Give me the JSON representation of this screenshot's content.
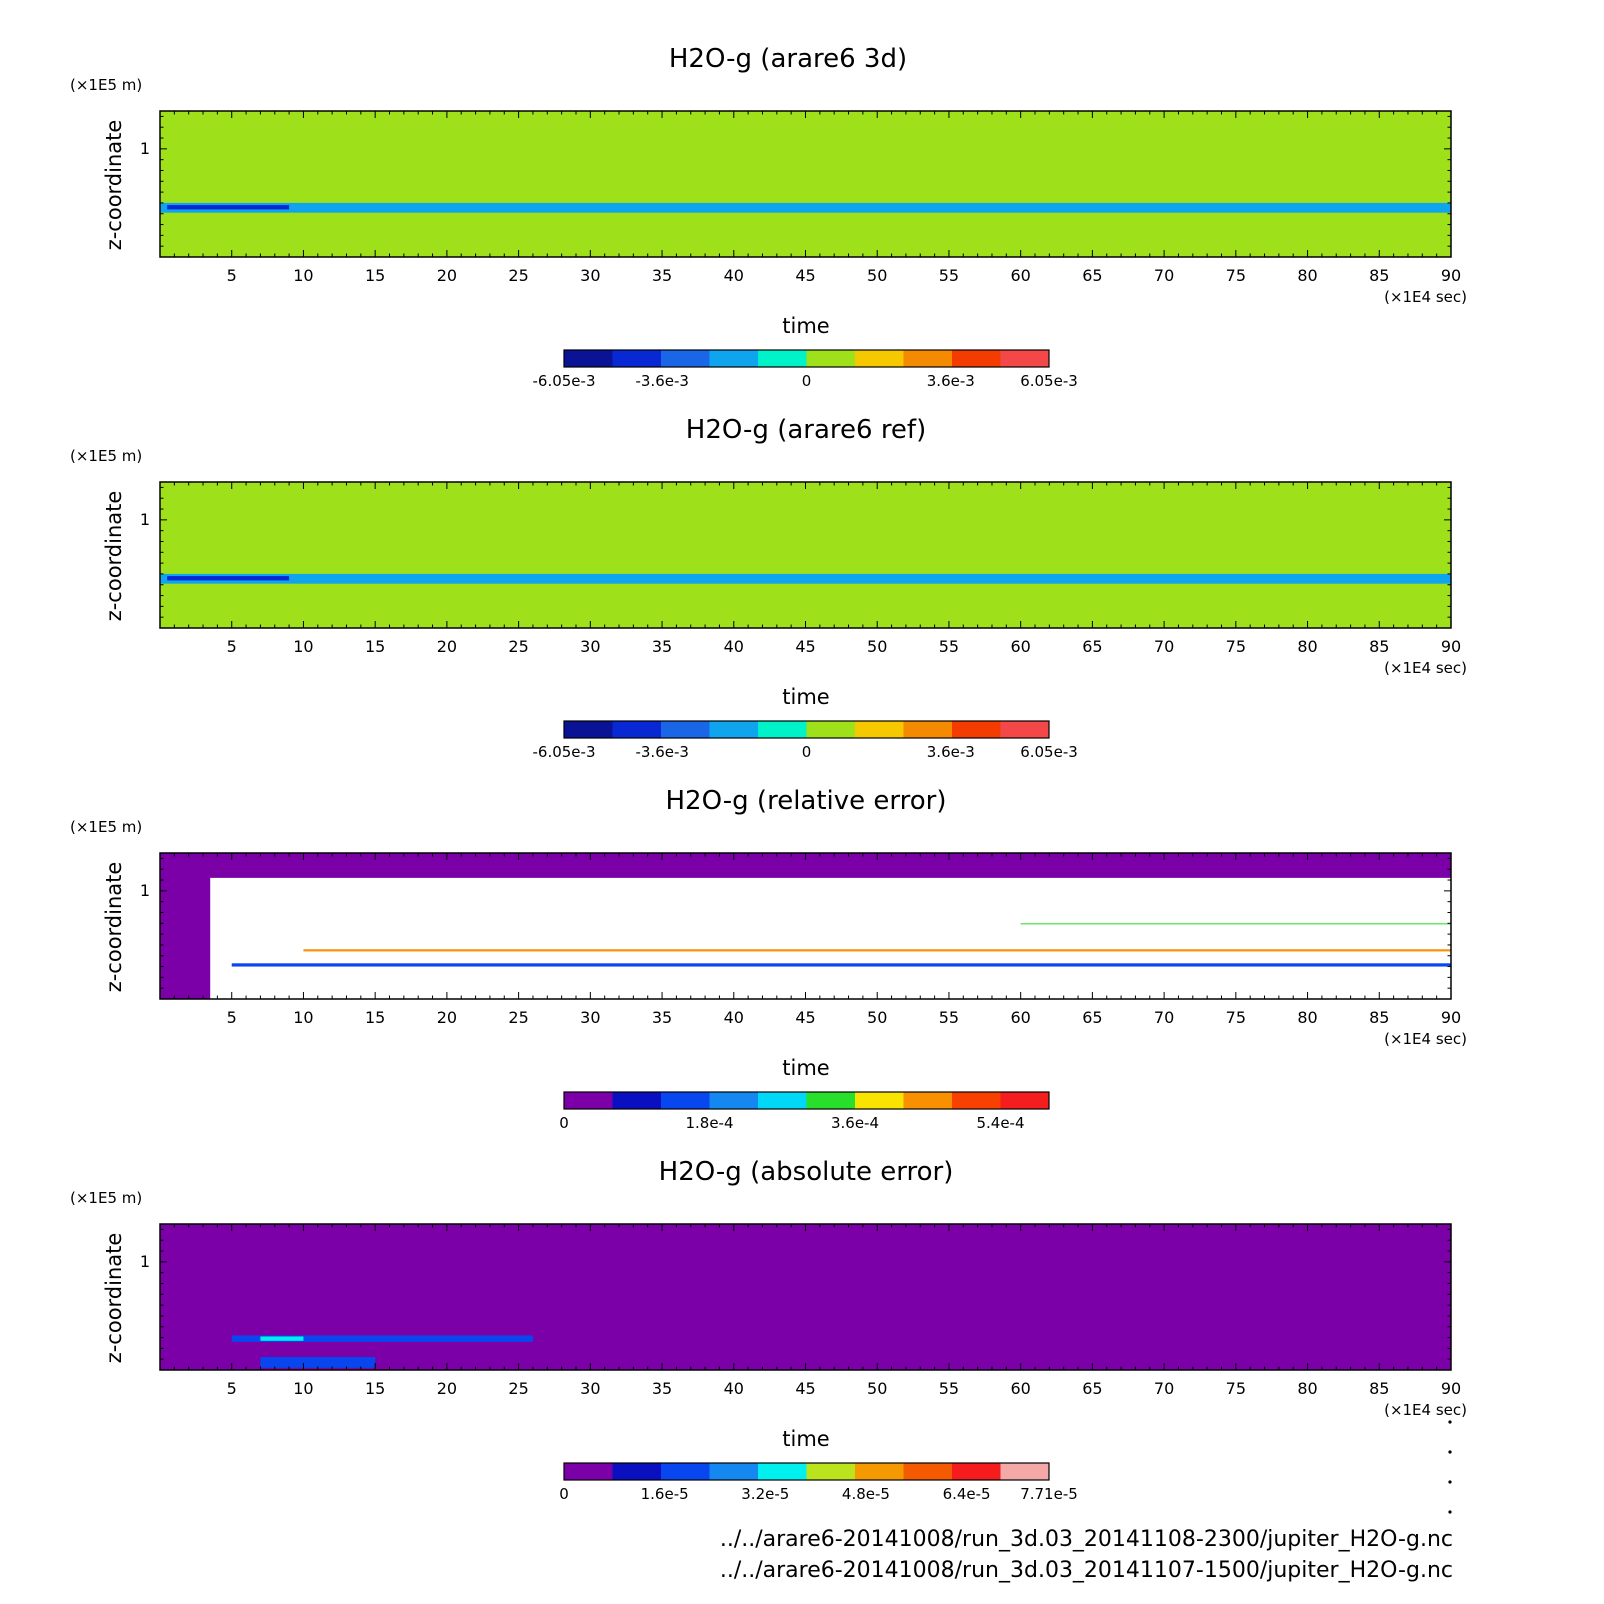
{
  "chart_data": [
    {
      "type": "heatmap",
      "title": "H2O-g (arare6 3d)",
      "xlabel": "time",
      "x_unit": "(×1E4 sec)",
      "ylabel": "z-coordinate",
      "y_unit": "(×1E5 m)",
      "xlim": [
        0,
        90
      ],
      "ylim": [
        0,
        1.35
      ],
      "x_ticks": [
        "5",
        "10",
        "15",
        "20",
        "25",
        "30",
        "35",
        "40",
        "45",
        "50",
        "55",
        "60",
        "65",
        "70",
        "75",
        "80",
        "85",
        "90"
      ],
      "y_ticks": [
        "1"
      ],
      "colorbar": {
        "min": -0.00605,
        "max": 0.00605,
        "labels": [
          "-6.05e-3",
          "-3.6e-3",
          "0",
          "3.6e-3",
          "6.05e-3"
        ],
        "label_values": [
          -0.00605,
          -0.0036,
          0,
          0.0036,
          0.00605
        ],
        "colors": [
          "#0a1296",
          "#0828d4",
          "#1a66e6",
          "#0ea4ee",
          "#00f2c8",
          "#9ee01a",
          "#f6c800",
          "#f48a00",
          "#f43c00",
          "#f44848"
        ]
      },
      "bands": [
        {
          "z0": 0,
          "z1": 0.13,
          "t0": 0,
          "t1": 5,
          "color": "#9ee01a"
        },
        {
          "z0": 0,
          "z1": 0.13,
          "t0": 35,
          "t1": 90,
          "color": "#9ee01a"
        },
        {
          "z0": 0.41,
          "z1": 0.5,
          "t0": 0,
          "t1": 90,
          "color": "#0ea4ee"
        },
        {
          "z0": 0.44,
          "z1": 0.48,
          "t0": 0.5,
          "t1": 9,
          "color": "#0828d4"
        },
        {
          "z0": 0.57,
          "z1": 0.61,
          "t0": 43,
          "t1": 90,
          "color": "#9ee01a"
        },
        {
          "z0": 0.78,
          "z1": 0.82,
          "t0": 13,
          "t1": 90,
          "color": "#9ee01a"
        },
        {
          "z0": 0.94,
          "z1": 0.97,
          "t0": 13,
          "t1": 90,
          "color": "#9ee01a"
        },
        {
          "z0": 1.03,
          "z1": 1.06,
          "t0": 10,
          "t1": 90,
          "color": "#9ee01a"
        },
        {
          "z0": 1.14,
          "z1": 1.17,
          "t0": 0,
          "t1": 90,
          "color": "#9ee01a"
        }
      ]
    },
    {
      "type": "heatmap",
      "title": "H2O-g (arare6 ref)",
      "xlabel": "time",
      "x_unit": "(×1E4 sec)",
      "ylabel": "z-coordinate",
      "y_unit": "(×1E5 m)",
      "xlim": [
        0,
        90
      ],
      "ylim": [
        0,
        1.35
      ],
      "x_ticks": [
        "5",
        "10",
        "15",
        "20",
        "25",
        "30",
        "35",
        "40",
        "45",
        "50",
        "55",
        "60",
        "65",
        "70",
        "75",
        "80",
        "85",
        "90"
      ],
      "y_ticks": [
        "1"
      ],
      "colorbar": {
        "min": -0.00605,
        "max": 0.00605,
        "labels": [
          "-6.05e-3",
          "-3.6e-3",
          "0",
          "3.6e-3",
          "6.05e-3"
        ],
        "label_values": [
          -0.00605,
          -0.0036,
          0,
          0.0036,
          0.00605
        ],
        "colors": [
          "#0a1296",
          "#0828d4",
          "#1a66e6",
          "#0ea4ee",
          "#00f2c8",
          "#9ee01a",
          "#f6c800",
          "#f48a00",
          "#f43c00",
          "#f44848"
        ]
      },
      "bands": [
        {
          "z0": 0,
          "z1": 0.13,
          "t0": 0,
          "t1": 5,
          "color": "#9ee01a"
        },
        {
          "z0": 0,
          "z1": 0.13,
          "t0": 33,
          "t1": 90,
          "color": "#9ee01a"
        },
        {
          "z0": 0.41,
          "z1": 0.5,
          "t0": 0,
          "t1": 90,
          "color": "#0ea4ee"
        },
        {
          "z0": 0.44,
          "z1": 0.48,
          "t0": 0.5,
          "t1": 9,
          "color": "#0828d4"
        },
        {
          "z0": 0.57,
          "z1": 0.61,
          "t0": 43,
          "t1": 90,
          "color": "#9ee01a"
        },
        {
          "z0": 0.78,
          "z1": 0.82,
          "t0": 13,
          "t1": 90,
          "color": "#9ee01a"
        },
        {
          "z0": 0.94,
          "z1": 0.97,
          "t0": 13,
          "t1": 90,
          "color": "#9ee01a"
        },
        {
          "z0": 1.03,
          "z1": 1.06,
          "t0": 10,
          "t1": 90,
          "color": "#9ee01a"
        },
        {
          "z0": 1.14,
          "z1": 1.17,
          "t0": 0,
          "t1": 90,
          "color": "#9ee01a"
        }
      ]
    },
    {
      "type": "heatmap",
      "title": "H2O-g (relative error)",
      "xlabel": "time",
      "x_unit": "(×1E4 sec)",
      "ylabel": "z-coordinate",
      "y_unit": "(×1E5 m)",
      "xlim": [
        0,
        90
      ],
      "ylim": [
        0,
        1.35
      ],
      "x_ticks": [
        "5",
        "10",
        "15",
        "20",
        "25",
        "30",
        "35",
        "40",
        "45",
        "50",
        "55",
        "60",
        "65",
        "70",
        "75",
        "80",
        "85",
        "90"
      ],
      "y_ticks": [
        "1"
      ],
      "colorbar": {
        "min": 0,
        "max": 0.0006,
        "labels": [
          "0",
          "1.8e-4",
          "3.6e-4",
          "5.4e-4"
        ],
        "label_values": [
          0,
          0.00018,
          0.00036,
          0.00054
        ],
        "colors": [
          "#7c00a8",
          "#0a10c0",
          "#0846f0",
          "#1488f0",
          "#00d8f8",
          "#28e02c",
          "#f8e400",
          "#f89000",
          "#f84000",
          "#f41e1e"
        ]
      },
      "background": "#ffffff",
      "bands": [
        {
          "z0": 1.12,
          "z1": 1.35,
          "t0": 0,
          "t1": 90,
          "color": "#7c00a8"
        },
        {
          "z0": 0,
          "z1": 1.35,
          "t0": 0,
          "t1": 3.5,
          "color": "#7c00a8"
        },
        {
          "z0": 0.3,
          "z1": 0.33,
          "t0": 5,
          "t1": 90,
          "color": "#0846f0"
        },
        {
          "z0": 0.44,
          "z1": 0.46,
          "t0": 10,
          "t1": 90,
          "color": "#f89000"
        },
        {
          "z0": 0.69,
          "z1": 0.7,
          "t0": 60,
          "t1": 90,
          "color": "#28e02c"
        }
      ]
    },
    {
      "type": "heatmap",
      "title": "H2O-g (absolute error)",
      "xlabel": "time",
      "x_unit": "(×1E4 sec)",
      "ylabel": "z-coordinate",
      "y_unit": "(×1E5 m)",
      "xlim": [
        0,
        90
      ],
      "ylim": [
        0,
        1.35
      ],
      "x_ticks": [
        "5",
        "10",
        "15",
        "20",
        "25",
        "30",
        "35",
        "40",
        "45",
        "50",
        "55",
        "60",
        "65",
        "70",
        "75",
        "80",
        "85",
        "90"
      ],
      "y_ticks": [
        "1"
      ],
      "colorbar": {
        "min": 0,
        "max": 7.71e-05,
        "labels": [
          "0",
          "1.6e-5",
          "3.2e-5",
          "4.8e-5",
          "6.4e-5",
          "7.71e-5"
        ],
        "label_values": [
          0,
          1.6e-05,
          3.2e-05,
          4.8e-05,
          6.4e-05,
          7.71e-05
        ],
        "colors": [
          "#7c00a8",
          "#0a10c0",
          "#0846f0",
          "#1488f0",
          "#00f0f0",
          "#bce41c",
          "#f49a00",
          "#f45a00",
          "#f41c1c",
          "#f4a8a8"
        ]
      },
      "background": "#7c00a8",
      "bands": [
        {
          "z0": 0.26,
          "z1": 0.32,
          "t0": 5,
          "t1": 26,
          "color": "#0846f0"
        },
        {
          "z0": 0.27,
          "z1": 0.31,
          "t0": 7,
          "t1": 10,
          "color": "#00f0f0"
        },
        {
          "z0": 0.02,
          "z1": 0.12,
          "t0": 7,
          "t1": 15,
          "color": "#0846f0"
        }
      ]
    }
  ],
  "footer": {
    "line1": "../../arare6-20141008/run_3d.03_20141108-2300/jupiter_H2O-g.nc",
    "line2": "../../arare6-20141008/run_3d.03_20141107-1500/jupiter_H2O-g.nc"
  }
}
